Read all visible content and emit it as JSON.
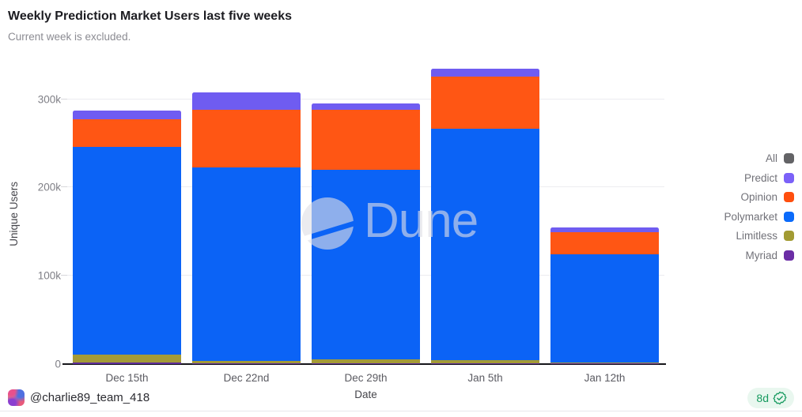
{
  "header": {
    "title": "Weekly Prediction Market Users last five weeks",
    "subtitle": "Current week is excluded."
  },
  "watermark": {
    "text": "Dune",
    "logo_icon": "dune-logo-icon"
  },
  "footer": {
    "handle": "@charlie89_team_418",
    "badge_label": "8d",
    "badge_icon": "verified-check-icon",
    "avatar_icon": "team-avatar"
  },
  "colors": {
    "axis_line": "#16161b",
    "gridline": "#ececf0",
    "badge_green": "#179a5f",
    "badge_bg": "#e9f7ef",
    "watermark_gray": "rgba(223,223,229,0.62)"
  },
  "chart_data": {
    "type": "bar",
    "stacked": true,
    "title": "Weekly Prediction Market Users last five weeks",
    "xlabel": "Date",
    "ylabel": "Unique Users",
    "categories": [
      "Dec 15th",
      "Dec 22nd",
      "Dec 29th",
      "Jan 5th",
      "Jan 12th"
    ],
    "ylim": [
      0,
      340000
    ],
    "grid": "horizontal",
    "legend_position": "right",
    "yticks": [
      {
        "label": "0",
        "value": 0
      },
      {
        "label": "100k",
        "value": 100000
      },
      {
        "label": "200k",
        "value": 200000
      },
      {
        "label": "300k",
        "value": 300000
      }
    ],
    "series": [
      {
        "name": "Myriad",
        "color": "#5f2d9b",
        "values": [
          2000,
          1300,
          1300,
          1300,
          500
        ]
      },
      {
        "name": "Limitless",
        "color": "#a49b38",
        "values": [
          8500,
          2200,
          4000,
          3200,
          1200
        ]
      },
      {
        "name": "Polymarket",
        "color": "#0b63f6",
        "values": [
          236000,
          219500,
          215000,
          262500,
          122500
        ]
      },
      {
        "name": "Opinion",
        "color": "#ff5614",
        "values": [
          30500,
          65000,
          68000,
          59000,
          25500
        ]
      },
      {
        "name": "Predict",
        "color": "#6f5cf1",
        "values": [
          10500,
          19500,
          7000,
          9000,
          5500
        ]
      }
    ],
    "totals": [
      287500,
      307500,
      295300,
      335000,
      155200
    ],
    "legend": [
      {
        "label": "All",
        "color": "#636366"
      },
      {
        "label": "Predict",
        "color": "#7b61f8"
      },
      {
        "label": "Opinion",
        "color": "#ff4f0e"
      },
      {
        "label": "Polymarket",
        "color": "#0b6bfb"
      },
      {
        "label": "Limitless",
        "color": "#a29b33"
      },
      {
        "label": "Myriad",
        "color": "#6b2da5"
      }
    ]
  }
}
